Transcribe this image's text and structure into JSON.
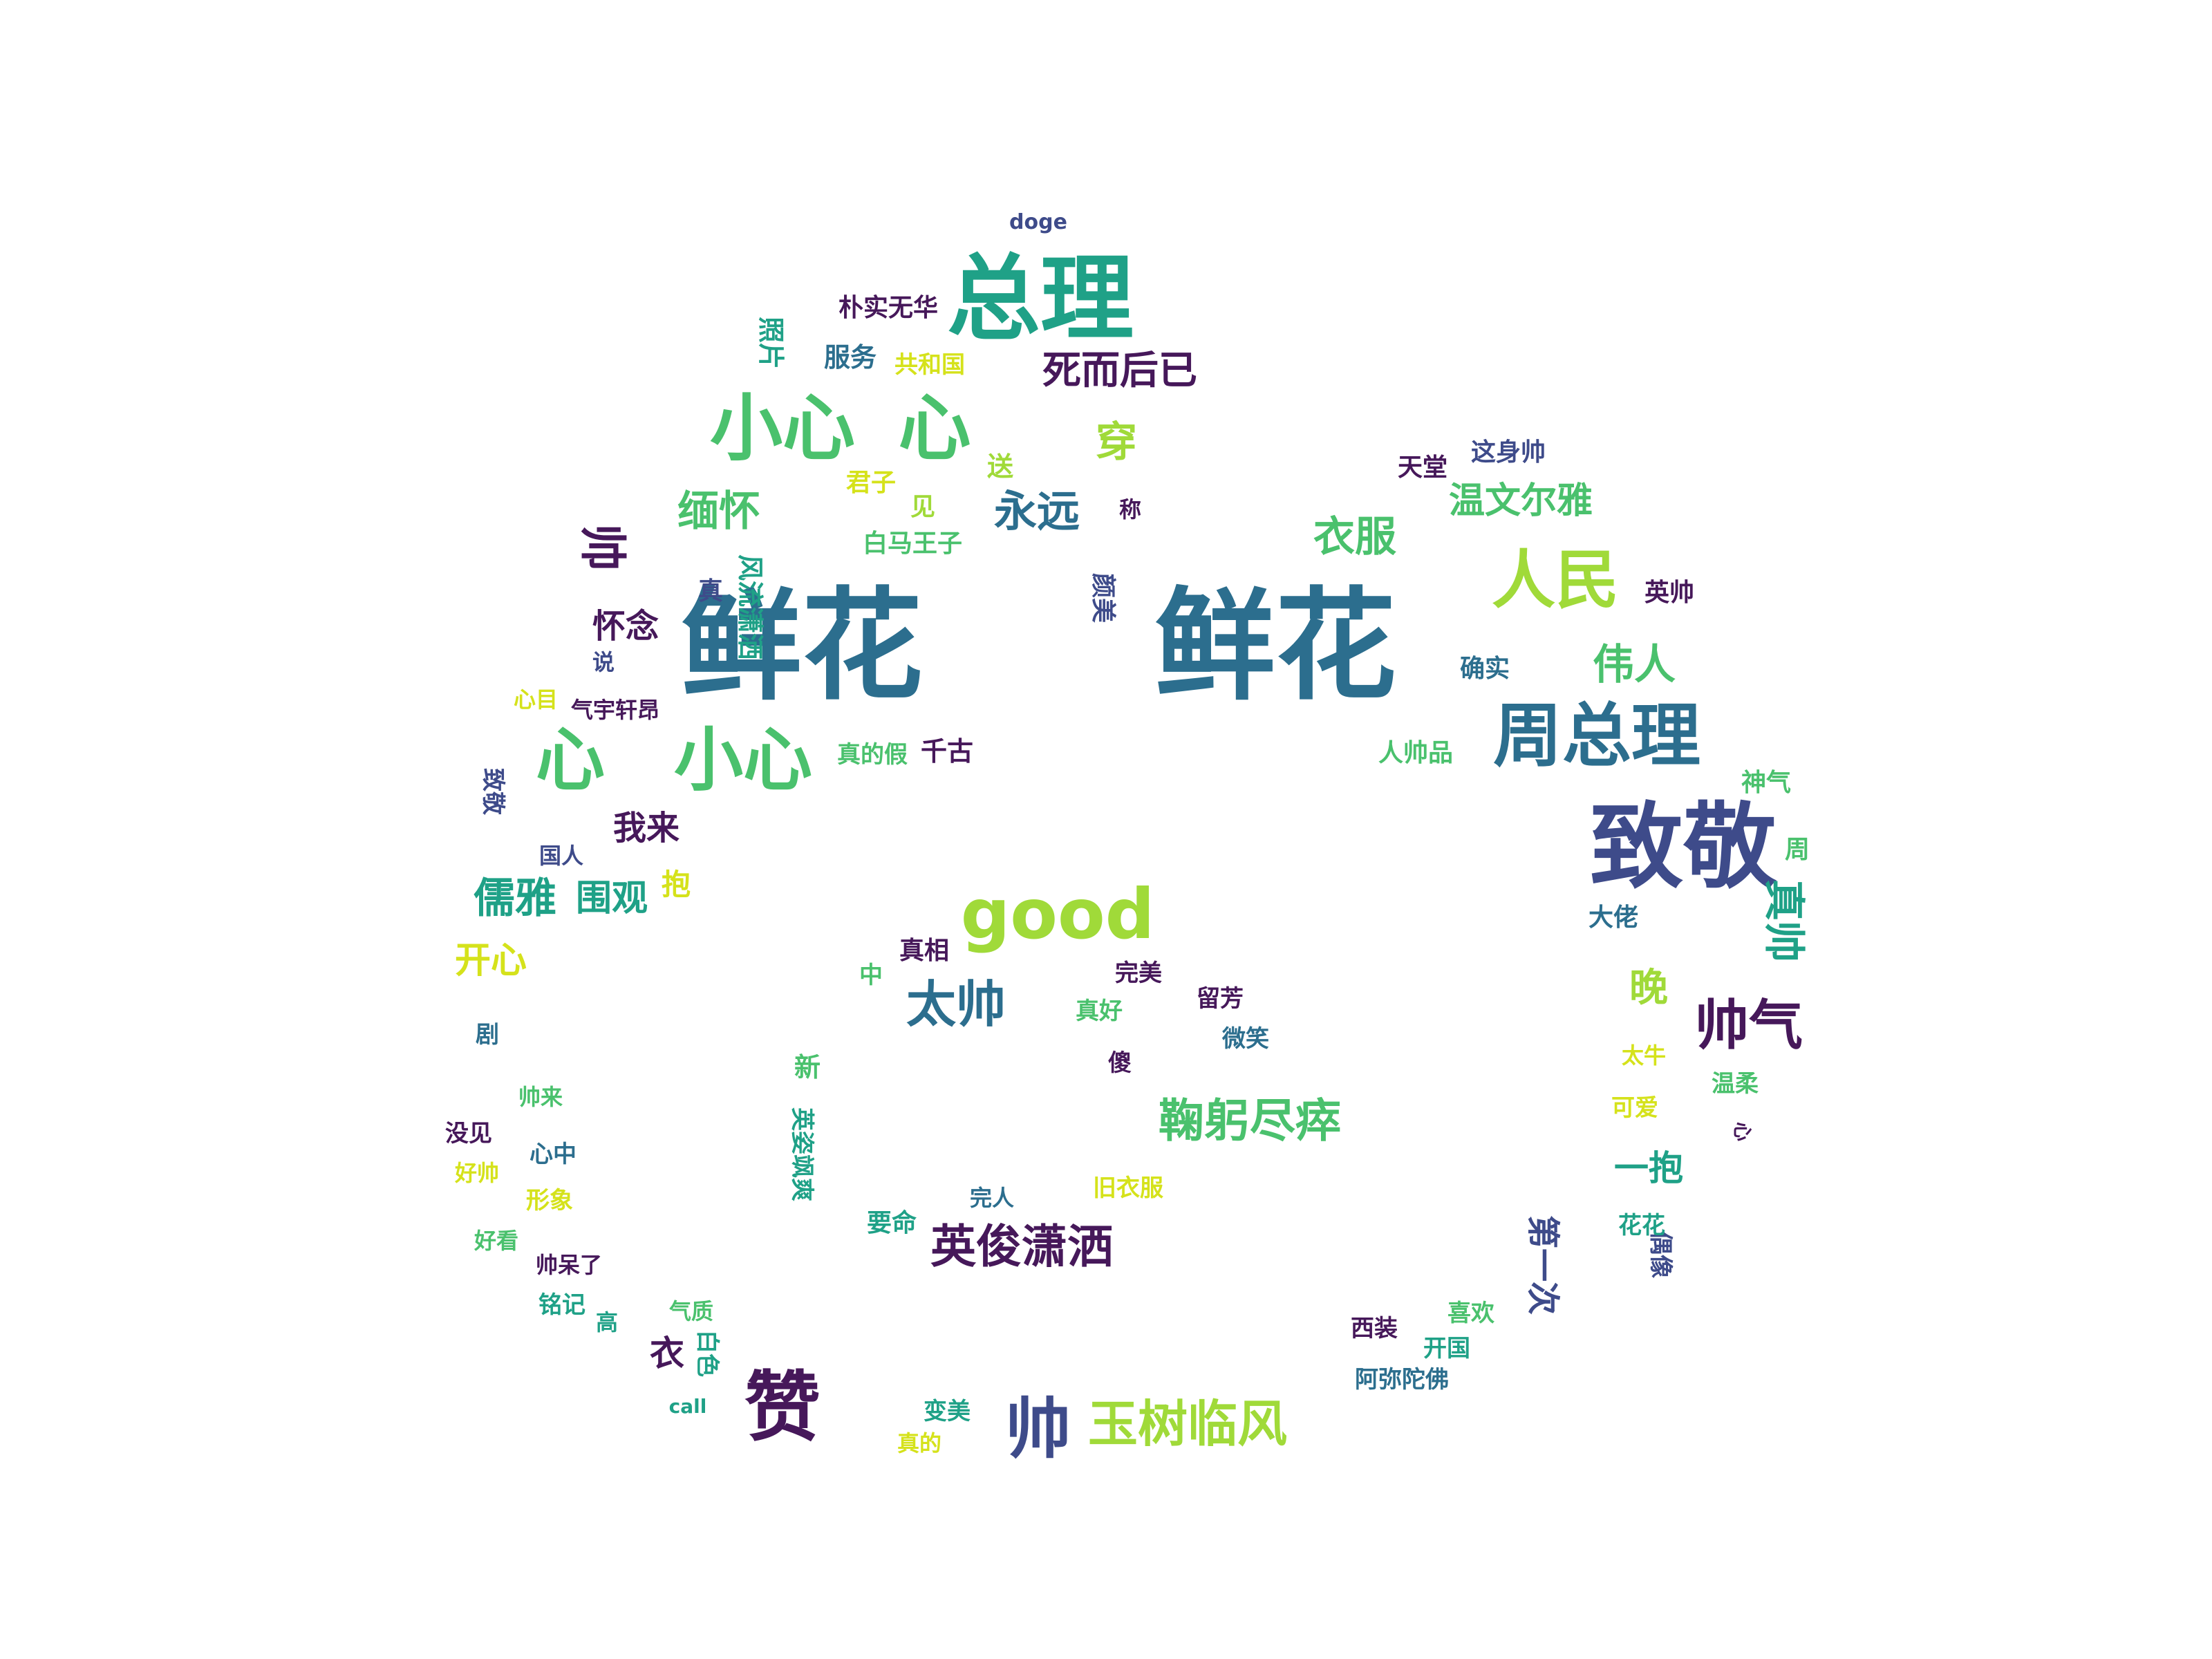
{
  "palette": {
    "dark_purple": "#46185a",
    "indigo": "#3e4b8a",
    "steel_blue": "#2c6e8e",
    "teal": "#1fa187",
    "green": "#4ac16d",
    "lime": "#a0da39",
    "yellow": "#d5e21b"
  },
  "words": [
    {
      "text": "鲜花",
      "color": "steel_blue",
      "vertical": false
    },
    {
      "text": "鲜花",
      "color": "steel_blue",
      "vertical": false
    },
    {
      "text": "总理",
      "color": "teal",
      "vertical": false
    },
    {
      "text": "小心",
      "color": "green",
      "vertical": false
    },
    {
      "text": "心",
      "color": "green",
      "vertical": false
    },
    {
      "text": "心",
      "color": "green",
      "vertical": false
    },
    {
      "text": "小心",
      "color": "green",
      "vertical": false
    },
    {
      "text": "致敬",
      "color": "indigo",
      "vertical": false
    },
    {
      "text": "周总理",
      "color": "steel_blue",
      "vertical": false
    },
    {
      "text": "good",
      "color": "lime",
      "vertical": false
    },
    {
      "text": "人民",
      "color": "lime",
      "vertical": false
    },
    {
      "text": "赞",
      "color": "dark_purple",
      "vertical": false
    },
    {
      "text": "帅",
      "color": "indigo",
      "vertical": false
    },
    {
      "text": "玉树临风",
      "color": "lime",
      "vertical": false
    },
    {
      "text": "帅气",
      "color": "dark_purple",
      "vertical": false
    },
    {
      "text": "太帅",
      "color": "steel_blue",
      "vertical": false
    },
    {
      "text": "鞠躬尽瘁",
      "color": "green",
      "vertical": false
    },
    {
      "text": "英俊潇洒",
      "color": "dark_purple",
      "vertical": false
    },
    {
      "text": "永远",
      "color": "steel_blue",
      "vertical": false
    },
    {
      "text": "死而后已",
      "color": "dark_purple",
      "vertical": false
    },
    {
      "text": "穿",
      "color": "lime",
      "vertical": false
    },
    {
      "text": "衣服",
      "color": "green",
      "vertical": false
    },
    {
      "text": "温文尔雅",
      "color": "green",
      "vertical": false
    },
    {
      "text": "伟人",
      "color": "green",
      "vertical": false
    },
    {
      "text": "缅怀",
      "color": "green",
      "vertical": false
    },
    {
      "text": "儒雅",
      "color": "teal",
      "vertical": false
    },
    {
      "text": "围观",
      "color": "teal",
      "vertical": false
    },
    {
      "text": "开心",
      "color": "yellow",
      "vertical": false
    },
    {
      "text": "我来",
      "color": "dark_purple",
      "vertical": false
    },
    {
      "text": "怀念",
      "color": "dark_purple",
      "vertical": false
    },
    {
      "text": "帅",
      "color": "dark_purple",
      "vertical": true
    },
    {
      "text": "真帅",
      "color": "teal",
      "vertical": true
    },
    {
      "text": "晚",
      "color": "lime",
      "vertical": false
    },
    {
      "text": "一抱",
      "color": "teal",
      "vertical": false
    },
    {
      "text": "第一次",
      "color": "indigo",
      "vertical": true
    },
    {
      "text": "doge",
      "color": "indigo",
      "vertical": false
    },
    {
      "text": "朴实无华",
      "color": "dark_purple",
      "vertical": false
    },
    {
      "text": "照片",
      "color": "teal",
      "vertical": true
    },
    {
      "text": "服务",
      "color": "steel_blue",
      "vertical": false
    },
    {
      "text": "共和国",
      "color": "yellow",
      "vertical": false
    },
    {
      "text": "送",
      "color": "lime",
      "vertical": false
    },
    {
      "text": "君子",
      "color": "yellow",
      "vertical": false
    },
    {
      "text": "见",
      "color": "lime",
      "vertical": false
    },
    {
      "text": "称",
      "color": "dark_purple",
      "vertical": false
    },
    {
      "text": "白马王子",
      "color": "green",
      "vertical": false
    },
    {
      "text": "天堂",
      "color": "dark_purple",
      "vertical": false
    },
    {
      "text": "这身帅",
      "color": "indigo",
      "vertical": false
    },
    {
      "text": "英帅",
      "color": "dark_purple",
      "vertical": false
    },
    {
      "text": "确实",
      "color": "steel_blue",
      "vertical": false
    },
    {
      "text": "人帅品",
      "color": "green",
      "vertical": false
    },
    {
      "text": "神气",
      "color": "green",
      "vertical": false
    },
    {
      "text": "周",
      "color": "green",
      "vertical": false
    },
    {
      "text": "大佬",
      "color": "steel_blue",
      "vertical": false
    },
    {
      "text": "颜美",
      "color": "indigo",
      "vertical": true
    },
    {
      "text": "真",
      "color": "indigo",
      "vertical": false
    },
    {
      "text": "风流潇洒",
      "color": "teal",
      "vertical": true
    },
    {
      "text": "说",
      "color": "indigo",
      "vertical": false
    },
    {
      "text": "心目",
      "color": "yellow",
      "vertical": false
    },
    {
      "text": "气宇轩昂",
      "color": "dark_purple",
      "vertical": false
    },
    {
      "text": "真的假",
      "color": "green",
      "vertical": false
    },
    {
      "text": "千古",
      "color": "dark_purple",
      "vertical": false
    },
    {
      "text": "致敬",
      "color": "indigo",
      "vertical": true
    },
    {
      "text": "偶像",
      "color": "indigo",
      "vertical": true
    },
    {
      "text": "国人",
      "color": "indigo",
      "vertical": false
    },
    {
      "text": "抱",
      "color": "yellow",
      "vertical": false
    },
    {
      "text": "真相",
      "color": "dark_purple",
      "vertical": false
    },
    {
      "text": "中",
      "color": "green",
      "vertical": false
    },
    {
      "text": "完美",
      "color": "dark_purple",
      "vertical": false
    },
    {
      "text": "留芳",
      "color": "dark_purple",
      "vertical": false
    },
    {
      "text": "真好",
      "color": "green",
      "vertical": false
    },
    {
      "text": "微笑",
      "color": "steel_blue",
      "vertical": false
    },
    {
      "text": "傻",
      "color": "dark_purple",
      "vertical": false
    },
    {
      "text": "新",
      "color": "green",
      "vertical": false
    },
    {
      "text": "英姿飒爽",
      "color": "teal",
      "vertical": true
    },
    {
      "text": "完人",
      "color": "steel_blue",
      "vertical": false
    },
    {
      "text": "旧衣服",
      "color": "yellow",
      "vertical": false
    },
    {
      "text": "要命",
      "color": "teal",
      "vertical": false
    },
    {
      "text": "剧",
      "color": "steel_blue",
      "vertical": false
    },
    {
      "text": "帅来",
      "color": "green",
      "vertical": false
    },
    {
      "text": "没见",
      "color": "dark_purple",
      "vertical": false
    },
    {
      "text": "心中",
      "color": "steel_blue",
      "vertical": false
    },
    {
      "text": "好帅",
      "color": "yellow",
      "vertical": false
    },
    {
      "text": "形象",
      "color": "yellow",
      "vertical": false
    },
    {
      "text": "好看",
      "color": "green",
      "vertical": false
    },
    {
      "text": "帅呆了",
      "color": "dark_purple",
      "vertical": false
    },
    {
      "text": "铭记",
      "color": "teal",
      "vertical": false
    },
    {
      "text": "高",
      "color": "teal",
      "vertical": false
    },
    {
      "text": "气质",
      "color": "green",
      "vertical": false
    },
    {
      "text": "衣",
      "color": "dark_purple",
      "vertical": false
    },
    {
      "text": "白色",
      "color": "teal",
      "vertical": true
    },
    {
      "text": "call",
      "color": "teal",
      "vertical": false
    },
    {
      "text": "变美",
      "color": "teal",
      "vertical": false
    },
    {
      "text": "真的",
      "color": "yellow",
      "vertical": false
    },
    {
      "text": "太牛",
      "color": "yellow",
      "vertical": false
    },
    {
      "text": "温柔",
      "color": "green",
      "vertical": false
    },
    {
      "text": "可爱",
      "color": "yellow",
      "vertical": false
    },
    {
      "text": "心",
      "color": "dark_purple",
      "vertical": true
    },
    {
      "text": "花花",
      "color": "teal",
      "vertical": false
    },
    {
      "text": "西装",
      "color": "dark_purple",
      "vertical": false
    },
    {
      "text": "喜欢",
      "color": "green",
      "vertical": false
    },
    {
      "text": "开国",
      "color": "teal",
      "vertical": false
    },
    {
      "text": "阿弥陀佛",
      "color": "steel_blue",
      "vertical": false
    }
  ]
}
